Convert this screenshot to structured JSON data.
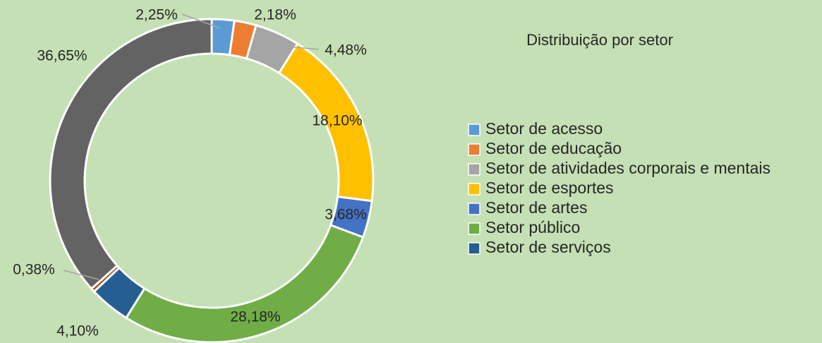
{
  "chart_data": {
    "type": "donut",
    "title": "Distribuição por setor",
    "categories": [
      "Setor de acesso",
      "Setor de educação",
      "Setor de atividades corporais e mentais",
      "Setor de esportes",
      "Setor de artes",
      "Setor público",
      "Setor de serviços",
      null,
      null
    ],
    "values": [
      2.25,
      2.18,
      4.48,
      18.1,
      3.68,
      28.18,
      4.1,
      0.38,
      36.65
    ],
    "value_labels": [
      "2,25%",
      "2,18%",
      "4,48%",
      "18,10%",
      "3,68%",
      "28,18%",
      "4,10%",
      "0,38%",
      "36,65%"
    ],
    "colors": [
      "#5b9bd5",
      "#ed7d31",
      "#a5a5a5",
      "#ffc000",
      "#4472c4",
      "#70ad47",
      "#255e91",
      "#9e480e",
      "#636363"
    ],
    "legend": "right"
  }
}
